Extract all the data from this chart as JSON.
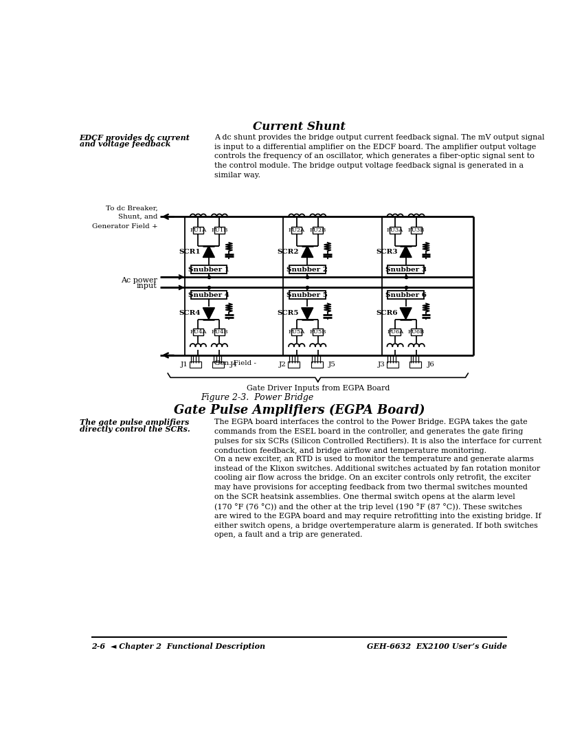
{
  "bg_color": "#ffffff",
  "title_current_shunt": "Current Shunt",
  "left_note_1": "EDCF provides dc current",
  "left_note_2": "and voltage feedback",
  "body_text_1": "A dc shunt provides the bridge output current feedback signal. The mV output signal\nis input to a differential amplifier on the EDCF board. The amplifier output voltage\ncontrols the frequency of an oscillator, which generates a fiber-optic signal sent to\nthe control module. The bridge output voltage feedback signal is generated in a\nsimilar way.",
  "title_gate_pulse": "Gate Pulse Amplifiers (EGPA Board)",
  "left_note_gate_1": "The gate pulse amplifiers",
  "left_note_gate_2": "directly control the SCRs.",
  "body_text_2": "The EGPA board interfaces the control to the Power Bridge. EGPA takes the gate\ncommands from the ESEL board in the controller, and generates the gate firing\npulses for six SCRs (Silicon Controlled Rectifiers). It is also the interface for current\nconduction feedback, and bridge airflow and temperature monitoring.",
  "body_text_3": "On a new exciter, an RTD is used to monitor the temperature and generate alarms\ninstead of the Klixon switches. Additional switches actuated by fan rotation monitor\ncooling air flow across the bridge. On an exciter controls only retrofit, the exciter\nmay have provisions for accepting feedback from two thermal switches mounted\non the SCR heatsink assemblies. One thermal switch opens at the alarm level\n(170 °F (76 °C)) and the other at the trip level (190 °F (87 °C)). These switches\nare wired to the EGPA board and may require retrofitting into the existing bridge. If\neither switch opens, a bridge overtemperature alarm is generated. If both switches\nopen, a fault and a trip are generated.",
  "figure_caption": "Figure 2-3.  Power Bridge",
  "footer_left": "2-6  ◄ Chapter 2  Functional Description",
  "footer_right": "GEH-6632  EX2100 User’s Guide"
}
